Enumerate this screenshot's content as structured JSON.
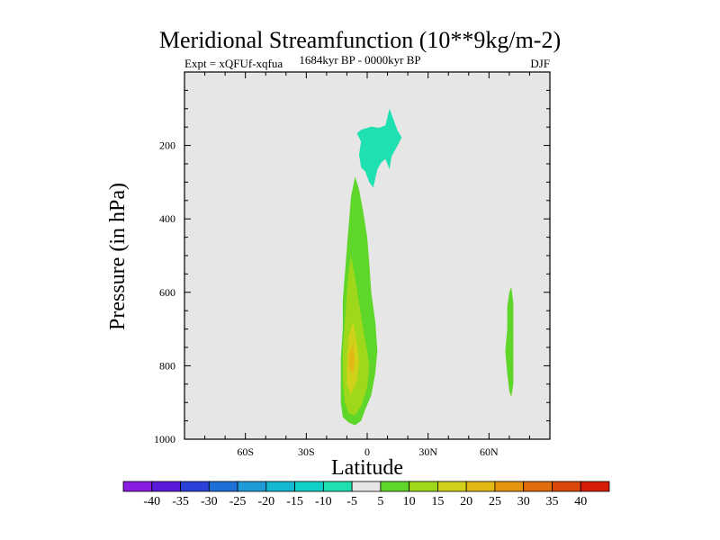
{
  "chart_data": {
    "type": "contour",
    "title": "Meridional Streamfunction (10**9kg/m-2)",
    "left_label": "Expt = xQFUf-xqfua",
    "center_label": "1684kyr BP - 0000kyr BP",
    "right_label": "DJF",
    "xlabel": "Latitude",
    "ylabel": "Pressure (in hPa)",
    "xlim": [
      -90,
      90
    ],
    "ylim": [
      1000,
      0
    ],
    "x_ticks": [
      -60,
      -30,
      0,
      30,
      60
    ],
    "x_tick_labels": [
      "60S",
      "30S",
      "0",
      "30N",
      "60N"
    ],
    "y_ticks": [
      200,
      400,
      600,
      800,
      1000
    ],
    "y_tick_labels": [
      "200",
      "400",
      "600",
      "800",
      "1000"
    ],
    "colorbar": {
      "labels": [
        "-40",
        "-35",
        "-30",
        "-25",
        "-20",
        "-15",
        "-10",
        "-5",
        "5",
        "10",
        "15",
        "20",
        "25",
        "30",
        "35",
        "40"
      ],
      "colors": [
        "#8a1be0",
        "#5a1ad8",
        "#2a40d8",
        "#1e6fd8",
        "#1f9bd8",
        "#13b8d0",
        "#10d0c8",
        "#1ee0b0",
        "#e6e6e6",
        "#5fd62a",
        "#9fd81a",
        "#d0d21a",
        "#e2b812",
        "#e4940e",
        "#e06c0c",
        "#dc480a",
        "#d61e08"
      ]
    },
    "features": [
      {
        "name": "upper-tropical-cell",
        "level": "-5",
        "color": "#1ee0b0",
        "outline": [
          [
            -3,
            157
          ],
          [
            2,
            149
          ],
          [
            6,
            152
          ],
          [
            9,
            145
          ],
          [
            11,
            100
          ],
          [
            13,
            130
          ],
          [
            15,
            160
          ],
          [
            17,
            178
          ],
          [
            15,
            200
          ],
          [
            12,
            230
          ],
          [
            11,
            265
          ],
          [
            9,
            237
          ],
          [
            7,
            246
          ],
          [
            5,
            265
          ],
          [
            4,
            290
          ],
          [
            3,
            315
          ],
          [
            1,
            300
          ],
          [
            -1,
            270
          ],
          [
            -3,
            260
          ],
          [
            -4,
            225
          ],
          [
            -3,
            190
          ],
          [
            -5,
            167
          ]
        ]
      },
      {
        "name": "lower-tropical-cell",
        "level": "5",
        "color": "#5fd62a",
        "outline": [
          [
            -6,
            285
          ],
          [
            -4,
            320
          ],
          [
            -2,
            380
          ],
          [
            0,
            450
          ],
          [
            1,
            520
          ],
          [
            2,
            600
          ],
          [
            4,
            680
          ],
          [
            5,
            760
          ],
          [
            4,
            820
          ],
          [
            2,
            880
          ],
          [
            -1,
            920
          ],
          [
            -3,
            950
          ],
          [
            -6,
            962
          ],
          [
            -9,
            955
          ],
          [
            -12,
            940
          ],
          [
            -13,
            900
          ],
          [
            -13,
            840
          ],
          [
            -13,
            780
          ],
          [
            -12,
            700
          ],
          [
            -12,
            620
          ],
          [
            -11,
            550
          ],
          [
            -10,
            480
          ],
          [
            -9,
            410
          ],
          [
            -8,
            340
          ]
        ]
      },
      {
        "name": "lower-tropical-cell",
        "level": "10",
        "color": "#9fd81a",
        "outline": [
          [
            -8,
            500
          ],
          [
            -6,
            560
          ],
          [
            -4,
            630
          ],
          [
            -2,
            700
          ],
          [
            0,
            760
          ],
          [
            1,
            800
          ],
          [
            0,
            860
          ],
          [
            -3,
            910
          ],
          [
            -6,
            935
          ],
          [
            -9,
            930
          ],
          [
            -11,
            900
          ],
          [
            -12,
            840
          ],
          [
            -12,
            760
          ],
          [
            -11,
            680
          ],
          [
            -10,
            600
          ],
          [
            -9,
            540
          ]
        ]
      },
      {
        "name": "lower-tropical-cell",
        "level": "15",
        "color": "#d0d21a",
        "outline": [
          [
            -7,
            680
          ],
          [
            -5,
            740
          ],
          [
            -4,
            790
          ],
          [
            -5,
            840
          ],
          [
            -8,
            880
          ],
          [
            -10,
            850
          ],
          [
            -10,
            780
          ],
          [
            -9,
            720
          ]
        ]
      },
      {
        "name": "lower-tropical-cell-core",
        "level": "20",
        "color": "#e2b812",
        "outline": [
          [
            -7,
            740
          ],
          [
            -6,
            780
          ],
          [
            -7,
            820
          ],
          [
            -9,
            810
          ],
          [
            -9,
            770
          ]
        ]
      },
      {
        "name": "high-latitude-cell",
        "level": "5",
        "color": "#5fd62a",
        "outline": [
          [
            71,
            585
          ],
          [
            72,
            630
          ],
          [
            72,
            700
          ],
          [
            72,
            780
          ],
          [
            72,
            850
          ],
          [
            71,
            885
          ],
          [
            70,
            870
          ],
          [
            69,
            820
          ],
          [
            68,
            760
          ],
          [
            69,
            700
          ],
          [
            69,
            640
          ],
          [
            70,
            600
          ]
        ]
      }
    ]
  }
}
